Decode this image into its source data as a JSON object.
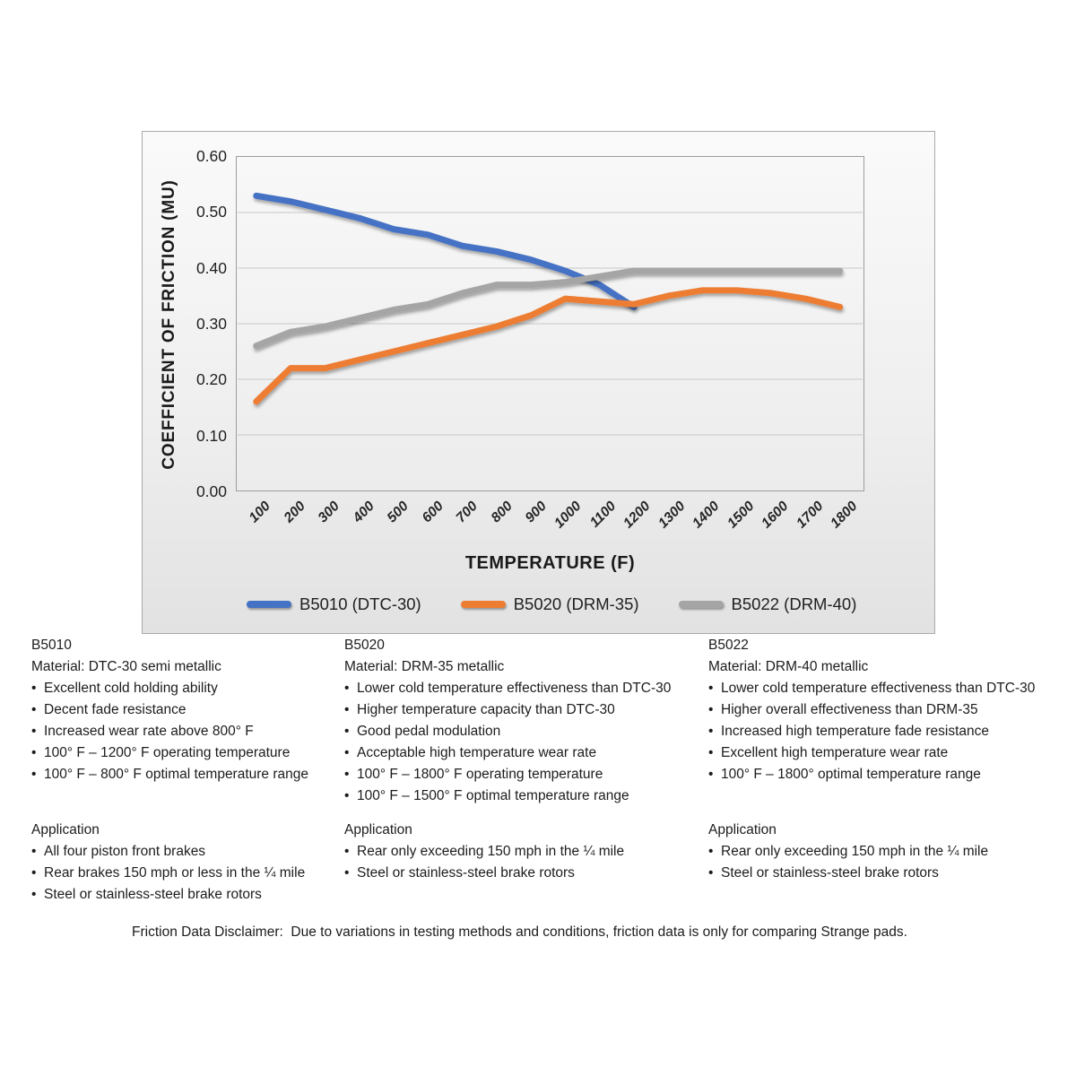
{
  "chart_data": {
    "type": "line",
    "title": "",
    "xlabel": "TEMPERATURE (F)",
    "ylabel": "COEFFICIENT OF FRICTION (MU)",
    "categories": [
      "100",
      "200",
      "300",
      "400",
      "500",
      "600",
      "700",
      "800",
      "900",
      "1000",
      "1100",
      "1200",
      "1300",
      "1400",
      "1500",
      "1600",
      "1700",
      "1800"
    ],
    "y_ticks": [
      "0.00",
      "0.10",
      "0.20",
      "0.30",
      "0.40",
      "0.50",
      "0.60"
    ],
    "ylim": [
      0,
      0.6
    ],
    "grid": true,
    "legend_position": "bottom",
    "series": [
      {
        "name": "B5010 (DTC-30)",
        "color": "#4472c4",
        "values": [
          0.53,
          0.52,
          0.505,
          0.49,
          0.47,
          0.46,
          0.44,
          0.43,
          0.415,
          0.395,
          0.37,
          0.33
        ]
      },
      {
        "name": "B5020 (DRM-35)",
        "color": "#ed7d31",
        "values": [
          0.16,
          0.22,
          0.22,
          0.235,
          0.25,
          0.265,
          0.28,
          0.295,
          0.315,
          0.345,
          0.34,
          0.335,
          0.35,
          0.36,
          0.36,
          0.355,
          0.345,
          0.33
        ]
      },
      {
        "name": "B5022 (DRM-40)",
        "color": "#a5a5a5",
        "values": [
          0.26,
          0.285,
          0.295,
          0.31,
          0.325,
          0.335,
          0.355,
          0.37,
          0.37,
          0.375,
          0.385,
          0.395,
          0.395,
          0.395,
          0.395,
          0.395,
          0.395,
          0.395
        ]
      }
    ],
    "gridline_color": "#c7c7c7"
  },
  "columns": [
    {
      "heading": "B5010",
      "material": "Material: DTC-30 semi metallic",
      "features": [
        "Excellent cold holding ability",
        "Decent fade resistance",
        "Increased wear rate above 800° F",
        "100° F – 1200° F operating temperature",
        "100° F – 800° F optimal temperature range"
      ],
      "application_heading": "Application",
      "applications": [
        "All four piston front brakes",
        "Rear brakes 150 mph or less in the ¼ mile",
        "Steel or stainless-steel brake rotors"
      ]
    },
    {
      "heading": "B5020",
      "material": "Material: DRM-35 metallic",
      "features": [
        "Lower cold temperature effectiveness than DTC-30",
        "Higher temperature capacity than DTC-30",
        "Good pedal modulation",
        "Acceptable high temperature wear rate",
        "100° F – 1800° F operating temperature",
        "100° F – 1500° F optimal temperature range"
      ],
      "application_heading": "Application",
      "applications": [
        "Rear only exceeding 150 mph in the ¼ mile",
        "Steel or stainless-steel brake rotors"
      ]
    },
    {
      "heading": "B5022",
      "material": "Material: DRM-40 metallic",
      "features": [
        "Lower cold temperature effectiveness than DTC-30",
        "Higher overall effectiveness than DRM-35",
        "Increased high temperature fade resistance",
        "Excellent high temperature wear rate",
        "100° F – 1800° optimal temperature range"
      ],
      "application_heading": "Application",
      "applications": [
        "Rear only exceeding 150 mph in the ¼ mile",
        "Steel or stainless-steel brake rotors"
      ]
    }
  ],
  "disclaimer": "Friction Data Disclaimer:  Due to variations in testing methods and conditions, friction data is only for comparing Strange pads."
}
